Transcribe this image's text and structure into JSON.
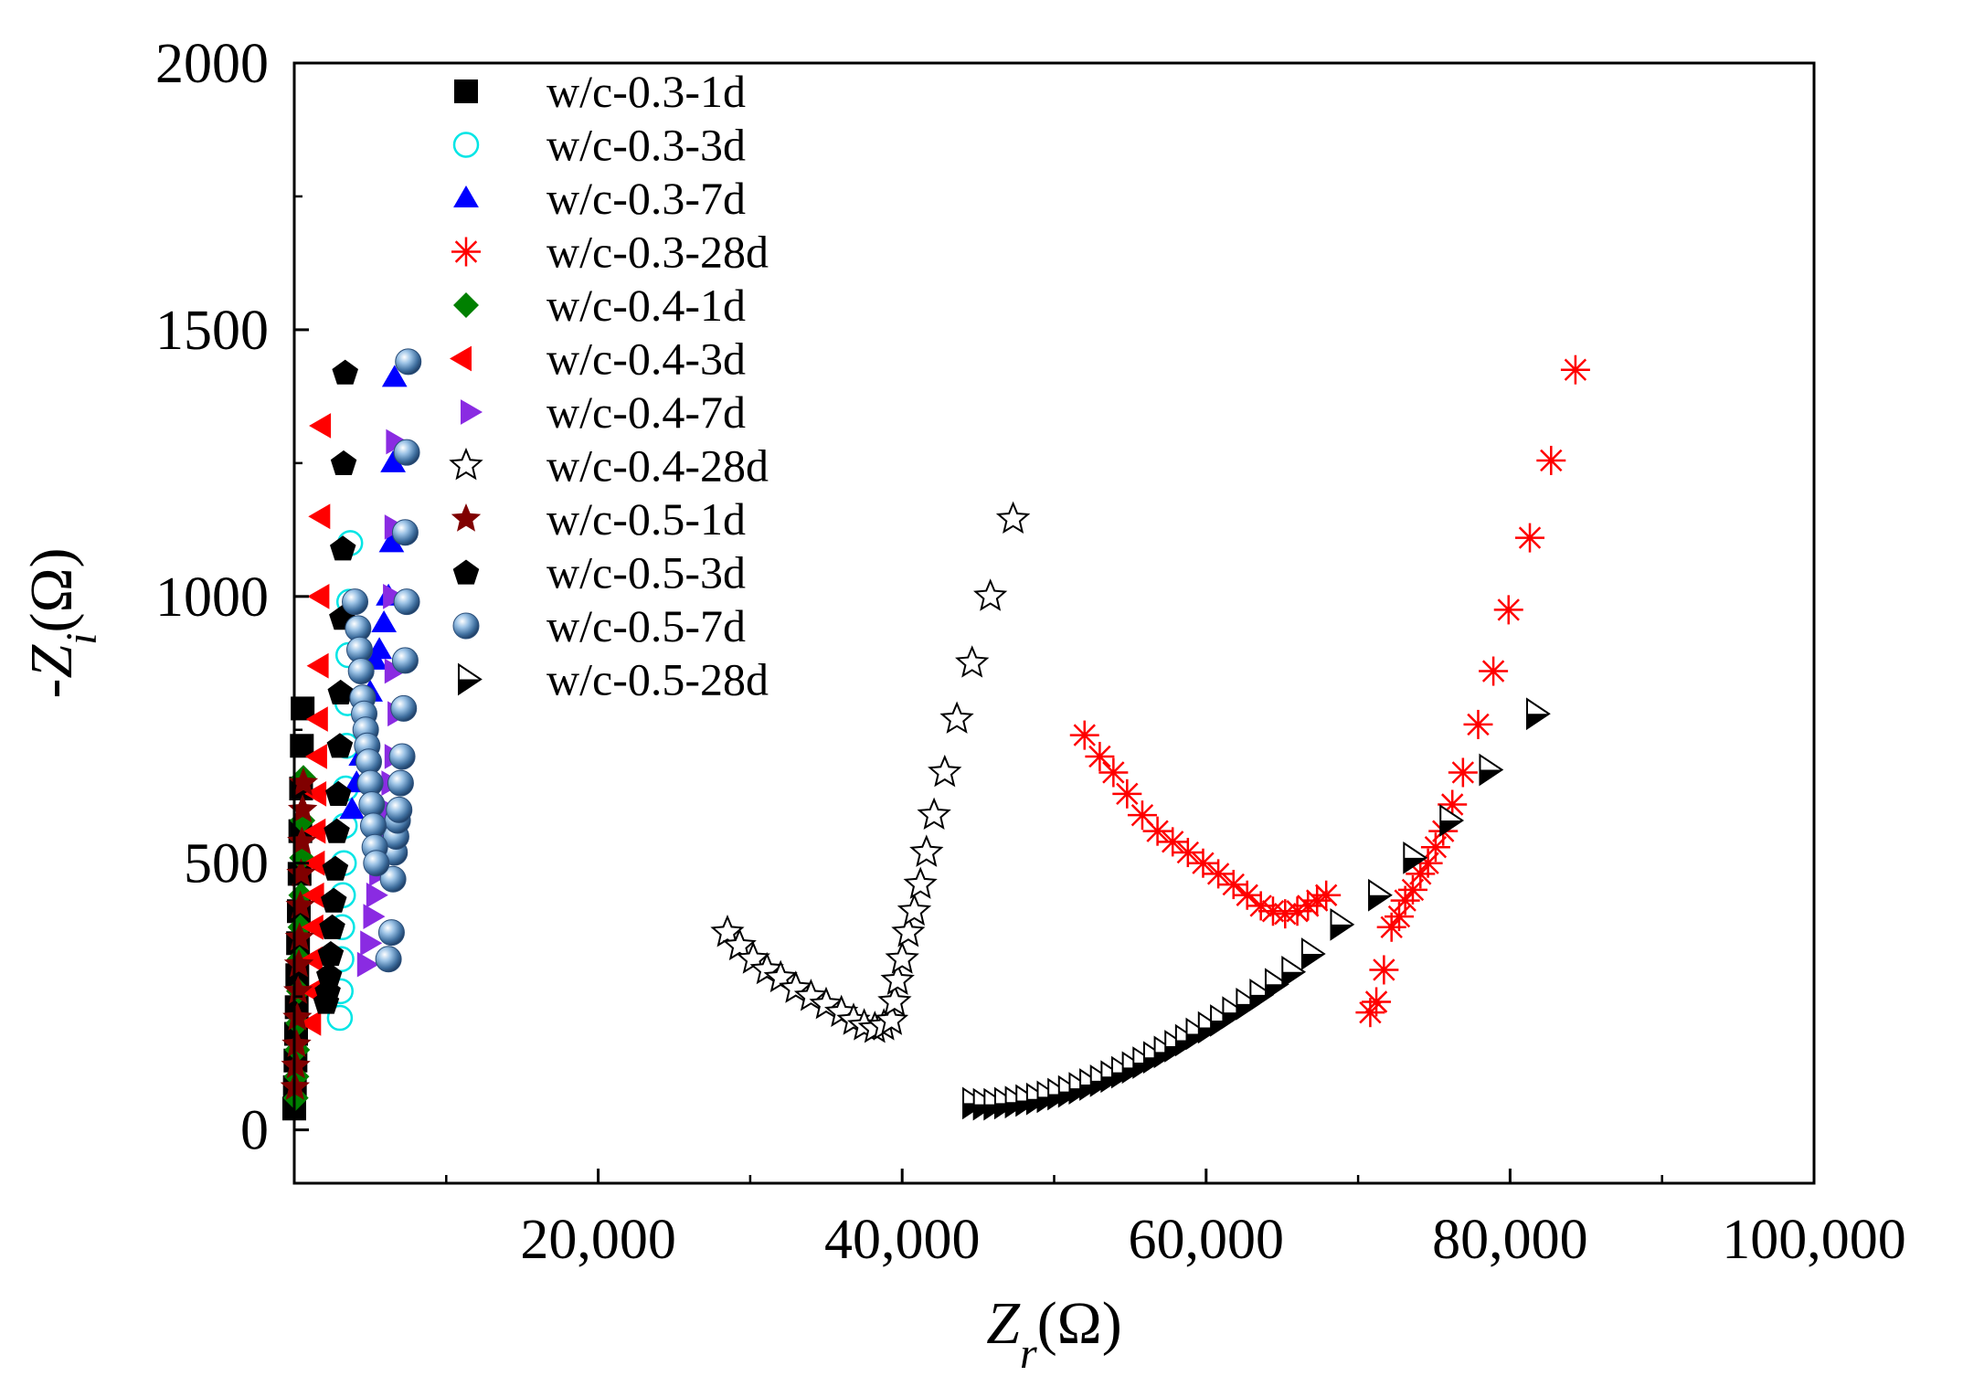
{
  "chart_data": {
    "type": "scatter",
    "title": "",
    "xlabel": "Z_r(Ω)",
    "ylabel": "-Z_i(Ω)",
    "xlabel_parts": {
      "prefix": "Z",
      "sub": "r",
      "suffix": "(Ω)"
    },
    "ylabel_parts": {
      "prefix": "-Z",
      "sub": "i",
      "suffix": "(Ω)"
    },
    "xlim": [
      0,
      100000
    ],
    "ylim": [
      -100,
      2000
    ],
    "x_ticks": [
      20000,
      40000,
      60000,
      80000,
      100000
    ],
    "x_tick_labels": [
      "20,000",
      "40,000",
      "60,000",
      "80,000",
      "100,000"
    ],
    "y_ticks": [
      0,
      500,
      1000,
      1500,
      2000
    ],
    "y_tick_labels": [
      "0",
      "500",
      "1000",
      "1500",
      "2000"
    ],
    "grid": false,
    "legend_position": "top-left",
    "series": [
      {
        "name": "w/c-0.3-1d",
        "marker": "square",
        "color": "#000000",
        "points": [
          [
            0,
            40
          ],
          [
            40,
            80
          ],
          [
            80,
            130
          ],
          [
            120,
            180
          ],
          [
            160,
            230
          ],
          [
            200,
            290
          ],
          [
            250,
            350
          ],
          [
            300,
            410
          ],
          [
            350,
            480
          ],
          [
            400,
            560
          ],
          [
            450,
            640
          ],
          [
            500,
            720
          ],
          [
            550,
            790
          ]
        ]
      },
      {
        "name": "w/c-0.3-3d",
        "marker": "open-circle",
        "color": "#00e5e5",
        "points": [
          [
            3000,
            210
          ],
          [
            3050,
            260
          ],
          [
            3100,
            320
          ],
          [
            3150,
            380
          ],
          [
            3200,
            440
          ],
          [
            3260,
            500
          ],
          [
            3320,
            570
          ],
          [
            3380,
            640
          ],
          [
            3440,
            720
          ],
          [
            3500,
            800
          ],
          [
            3560,
            890
          ],
          [
            3620,
            990
          ],
          [
            3680,
            1100
          ]
        ]
      },
      {
        "name": "w/c-0.3-7d",
        "marker": "triangle",
        "color": "#0000ff",
        "points": [
          [
            3800,
            600
          ],
          [
            4100,
            650
          ],
          [
            4400,
            700
          ],
          [
            4700,
            760
          ],
          [
            5000,
            820
          ],
          [
            5300,
            880
          ],
          [
            5600,
            900
          ],
          [
            5900,
            950
          ],
          [
            6200,
            1000
          ],
          [
            6400,
            1100
          ],
          [
            6500,
            1250
          ],
          [
            6600,
            1410
          ]
        ]
      },
      {
        "name": "w/c-0.3-28d",
        "marker": "asterisk",
        "color": "#ff0000",
        "points": [
          [
            70800,
            220
          ],
          [
            71200,
            240
          ],
          [
            71700,
            300
          ],
          [
            72200,
            380
          ],
          [
            72700,
            400
          ],
          [
            73100,
            430
          ],
          [
            73600,
            450
          ],
          [
            74100,
            480
          ],
          [
            74600,
            500
          ],
          [
            75100,
            530
          ],
          [
            75600,
            560
          ],
          [
            76200,
            610
          ],
          [
            76900,
            670
          ],
          [
            77900,
            760
          ],
          [
            78900,
            860
          ],
          [
            79900,
            975
          ],
          [
            81300,
            1110
          ],
          [
            82700,
            1255
          ],
          [
            84300,
            1425
          ],
          [
            52000,
            740
          ],
          [
            53000,
            700
          ],
          [
            53900,
            670
          ],
          [
            54800,
            630
          ],
          [
            55800,
            590
          ],
          [
            56800,
            560
          ],
          [
            57800,
            540
          ],
          [
            58800,
            520
          ],
          [
            59800,
            500
          ],
          [
            60800,
            480
          ],
          [
            61800,
            460
          ],
          [
            62700,
            440
          ],
          [
            63600,
            420
          ],
          [
            64400,
            410
          ],
          [
            65200,
            405
          ],
          [
            66000,
            410
          ],
          [
            66700,
            420
          ],
          [
            67300,
            430
          ],
          [
            67900,
            440
          ]
        ]
      },
      {
        "name": "w/c-0.4-1d",
        "marker": "diamond",
        "color": "#008000",
        "points": [
          [
            100,
            60
          ],
          [
            150,
            100
          ],
          [
            200,
            150
          ],
          [
            250,
            200
          ],
          [
            300,
            260
          ],
          [
            350,
            320
          ],
          [
            400,
            380
          ],
          [
            450,
            440
          ],
          [
            500,
            510
          ],
          [
            550,
            580
          ],
          [
            600,
            660
          ]
        ]
      },
      {
        "name": "w/c-0.4-3d",
        "marker": "triangle-left",
        "color": "#ff0000",
        "points": [
          [
            1400,
            200
          ],
          [
            1450,
            260
          ],
          [
            1500,
            320
          ],
          [
            1550,
            380
          ],
          [
            1600,
            440
          ],
          [
            1650,
            500
          ],
          [
            1700,
            560
          ],
          [
            1750,
            630
          ],
          [
            1800,
            700
          ],
          [
            1850,
            770
          ],
          [
            1900,
            870
          ],
          [
            1950,
            1000
          ],
          [
            2000,
            1150
          ],
          [
            2050,
            1320
          ]
        ]
      },
      {
        "name": "w/c-0.4-7d",
        "marker": "triangle-right",
        "color": "#8a2be2",
        "points": [
          [
            4500,
            310
          ],
          [
            4700,
            350
          ],
          [
            4900,
            400
          ],
          [
            5100,
            440
          ],
          [
            5300,
            480
          ],
          [
            5500,
            520
          ],
          [
            5700,
            560
          ],
          [
            5900,
            600
          ],
          [
            6100,
            650
          ],
          [
            6300,
            700
          ],
          [
            6500,
            780
          ],
          [
            6300,
            860
          ],
          [
            6200,
            1000
          ],
          [
            6300,
            1130
          ],
          [
            6400,
            1290
          ]
        ]
      },
      {
        "name": "w/c-0.4-28d",
        "marker": "open-star",
        "color": "#000000",
        "points": [
          [
            28500,
            370
          ],
          [
            29300,
            345
          ],
          [
            30200,
            320
          ],
          [
            31100,
            300
          ],
          [
            32000,
            285
          ],
          [
            33000,
            265
          ],
          [
            34000,
            250
          ],
          [
            35000,
            235
          ],
          [
            36000,
            220
          ],
          [
            36800,
            205
          ],
          [
            37500,
            195
          ],
          [
            38200,
            190
          ],
          [
            38800,
            195
          ],
          [
            39300,
            205
          ],
          [
            39500,
            240
          ],
          [
            39700,
            280
          ],
          [
            40000,
            320
          ],
          [
            40400,
            370
          ],
          [
            40800,
            410
          ],
          [
            41200,
            460
          ],
          [
            41600,
            520
          ],
          [
            42100,
            590
          ],
          [
            42800,
            670
          ],
          [
            43600,
            770
          ],
          [
            44600,
            875
          ],
          [
            45800,
            1000
          ],
          [
            47300,
            1145
          ]
        ]
      },
      {
        "name": "w/c-0.5-1d",
        "marker": "filled-star",
        "color": "#800000",
        "points": [
          [
            50,
            80
          ],
          [
            100,
            120
          ],
          [
            150,
            160
          ],
          [
            200,
            210
          ],
          [
            250,
            260
          ],
          [
            300,
            310
          ],
          [
            350,
            360
          ],
          [
            400,
            420
          ],
          [
            450,
            480
          ],
          [
            500,
            540
          ],
          [
            550,
            600
          ],
          [
            600,
            650
          ]
        ]
      },
      {
        "name": "w/c-0.5-3d",
        "marker": "pentagon",
        "color": "#000000",
        "points": [
          [
            2100,
            240
          ],
          [
            2200,
            260
          ],
          [
            2300,
            290
          ],
          [
            2400,
            330
          ],
          [
            2500,
            380
          ],
          [
            2600,
            430
          ],
          [
            2700,
            490
          ],
          [
            2800,
            560
          ],
          [
            2900,
            630
          ],
          [
            3000,
            720
          ],
          [
            3050,
            820
          ],
          [
            3150,
            960
          ],
          [
            3200,
            1090
          ],
          [
            3250,
            1250
          ],
          [
            3350,
            1420
          ]
        ]
      },
      {
        "name": "w/c-0.5-7d",
        "marker": "ball",
        "color": "#4a7fb5",
        "points": [
          [
            6200,
            320
          ],
          [
            6400,
            370
          ],
          [
            6500,
            470
          ],
          [
            6600,
            520
          ],
          [
            6700,
            550
          ],
          [
            6800,
            580
          ],
          [
            6900,
            600
          ],
          [
            7000,
            650
          ],
          [
            7100,
            700
          ],
          [
            7200,
            790
          ],
          [
            7300,
            880
          ],
          [
            7400,
            990
          ],
          [
            7300,
            1120
          ],
          [
            7400,
            1270
          ],
          [
            7500,
            1440
          ],
          [
            4000,
            990
          ],
          [
            4200,
            940
          ],
          [
            4300,
            900
          ],
          [
            4400,
            860
          ],
          [
            4500,
            810
          ],
          [
            4600,
            780
          ],
          [
            4700,
            750
          ],
          [
            4800,
            720
          ],
          [
            4900,
            690
          ],
          [
            5000,
            650
          ],
          [
            5100,
            610
          ],
          [
            5200,
            570
          ],
          [
            5300,
            530
          ],
          [
            5400,
            500
          ]
        ]
      },
      {
        "name": "w/c-0.5-28d",
        "marker": "half-triangle-right",
        "color": "#000000",
        "points": [
          [
            44500,
            50
          ],
          [
            45200,
            48
          ],
          [
            45900,
            48
          ],
          [
            46600,
            50
          ],
          [
            47300,
            52
          ],
          [
            48000,
            55
          ],
          [
            48700,
            58
          ],
          [
            49400,
            62
          ],
          [
            50100,
            67
          ],
          [
            50800,
            72
          ],
          [
            51500,
            78
          ],
          [
            52200,
            85
          ],
          [
            52900,
            92
          ],
          [
            53600,
            100
          ],
          [
            54300,
            108
          ],
          [
            55000,
            117
          ],
          [
            55700,
            126
          ],
          [
            56400,
            136
          ],
          [
            57100,
            146
          ],
          [
            57800,
            157
          ],
          [
            58500,
            168
          ],
          [
            59200,
            180
          ],
          [
            60000,
            192
          ],
          [
            60800,
            205
          ],
          [
            61600,
            220
          ],
          [
            62500,
            236
          ],
          [
            63400,
            253
          ],
          [
            64400,
            273
          ],
          [
            65500,
            296
          ],
          [
            66800,
            330
          ],
          [
            68700,
            385
          ],
          [
            71200,
            440
          ],
          [
            73500,
            510
          ],
          [
            75900,
            580
          ],
          [
            78500,
            675
          ],
          [
            81600,
            780
          ]
        ]
      }
    ]
  }
}
